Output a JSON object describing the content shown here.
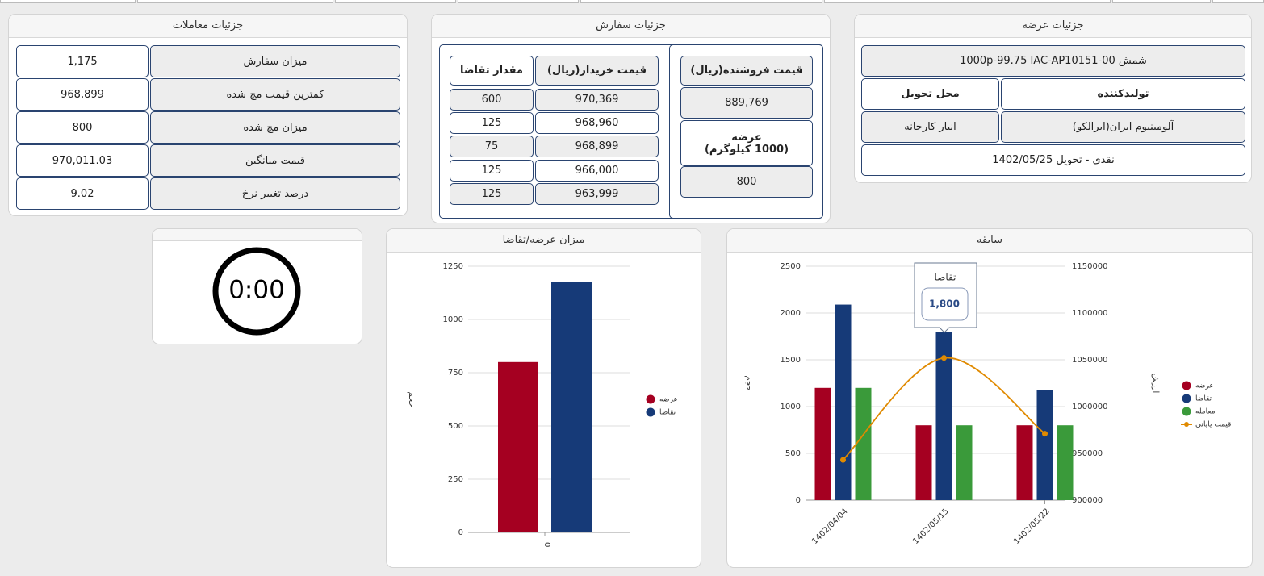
{
  "supply_details": {
    "title": "جزئیات عرضه",
    "product": "شمش 1000p-99.75 IAC-AP10151-00",
    "headers": [
      "تولیدکننده",
      "محل تحویل"
    ],
    "values": [
      "آلومینیوم ایران(ایرالکو)",
      "انبار کارخانه"
    ],
    "terms": "نقدی - تحویل 1402/05/25"
  },
  "order_details": {
    "title": "جزئیات سفارش",
    "seller": {
      "price_header": "قیمت فروشنده(ریال)",
      "price": "889,769",
      "supply_header": "عرضه",
      "supply_unit": "(1000 کیلوگرم)",
      "supply": "800"
    },
    "buyers": {
      "headers": [
        "قیمت خریدار(ریال)",
        "مقدار تقاضا"
      ],
      "rows": [
        [
          "970,369",
          "600"
        ],
        [
          "968,960",
          "125"
        ],
        [
          "968,899",
          "75"
        ],
        [
          "966,000",
          "125"
        ],
        [
          "963,999",
          "125"
        ]
      ]
    }
  },
  "trade_details": {
    "title": "جزئیات معاملات",
    "rows": [
      [
        "میزان سفارش",
        "1,175"
      ],
      [
        "کمترین قیمت مچ شده",
        "968,899"
      ],
      [
        "میزان مچ شده",
        "800"
      ],
      [
        "قیمت میانگین",
        "970,011.03"
      ],
      [
        "درصد تغییر نرخ",
        "9.02"
      ]
    ]
  },
  "timer": {
    "display": "0:00"
  },
  "chart_data": [
    {
      "type": "bar",
      "title": "میزان عرضه/تقاضا",
      "y_label": "حجم",
      "categories": [
        "0"
      ],
      "series": [
        {
          "name": "عرضه",
          "color": "#a50021",
          "values": [
            800
          ]
        },
        {
          "name": "تقاضا",
          "color": "#163a78",
          "values": [
            1175
          ]
        }
      ],
      "ylim": [
        0,
        1250
      ],
      "yticks": [
        0,
        250,
        500,
        750,
        1000,
        1250
      ],
      "grid": true,
      "legend": "right"
    },
    {
      "type": "combo",
      "title": "سابقه",
      "y_label": "حجم",
      "y2_label": "ارزش",
      "categories": [
        "1402/04/04",
        "1402/05/15",
        "1402/05/22"
      ],
      "series": [
        {
          "name": "عرضه",
          "color": "#a50021",
          "type": "bar",
          "values": [
            1200,
            800,
            800
          ]
        },
        {
          "name": "تقاضا",
          "color": "#163a78",
          "type": "bar",
          "values": [
            2090,
            1800,
            1175
          ]
        },
        {
          "name": "معامله",
          "color": "#3a9a3a",
          "type": "bar",
          "values": [
            1200,
            800,
            800
          ]
        },
        {
          "name": "قیمت پایانی",
          "color": "#e08a00",
          "type": "line",
          "axis": "y2",
          "values": [
            943000,
            1052000,
            971000
          ]
        }
      ],
      "ylim": [
        0,
        2500
      ],
      "yticks": [
        0,
        500,
        1000,
        1500,
        2000,
        2500
      ],
      "y2lim": [
        900000,
        1150000
      ],
      "y2ticks": [
        900000,
        950000,
        1000000,
        1050000,
        1100000,
        1150000
      ],
      "grid": true,
      "legend": "right",
      "tooltip": {
        "title": "تقاضا",
        "label": "1,800"
      }
    }
  ]
}
